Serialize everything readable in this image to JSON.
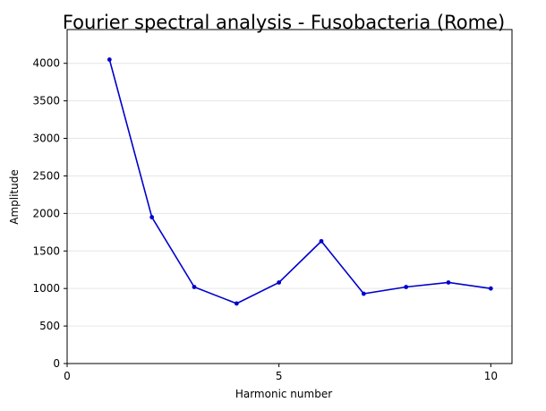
{
  "chart_data": {
    "type": "line",
    "title": "Fourier spectral analysis - Fusobacteria (Rome)",
    "xlabel": "Harmonic number",
    "ylabel": "Amplitude",
    "xlim": [
      0,
      10.5
    ],
    "ylim": [
      0,
      4450
    ],
    "xticks": [
      0,
      5,
      10
    ],
    "yticks": [
      0,
      500,
      1000,
      1500,
      2000,
      2500,
      3000,
      3500,
      4000
    ],
    "grid": "horizontal",
    "series": [
      {
        "color": "#0000cc",
        "x": [
          1,
          2,
          3,
          4,
          5,
          6,
          7,
          8,
          9,
          10
        ],
        "y": [
          4050,
          1950,
          1020,
          800,
          1080,
          1630,
          930,
          1020,
          1080,
          1000
        ]
      }
    ]
  }
}
